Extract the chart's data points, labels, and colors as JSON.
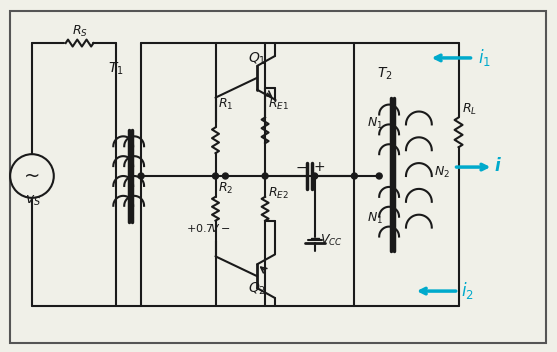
{
  "bg_color": "#f0f0e8",
  "border_color": "#333333",
  "line_color": "#1a1a1a",
  "component_color": "#1a1a1a",
  "arrow_color": "#00aacc",
  "label_color": "#1a1a1a",
  "fig_width": 5.57,
  "fig_height": 3.52,
  "dpi": 100
}
